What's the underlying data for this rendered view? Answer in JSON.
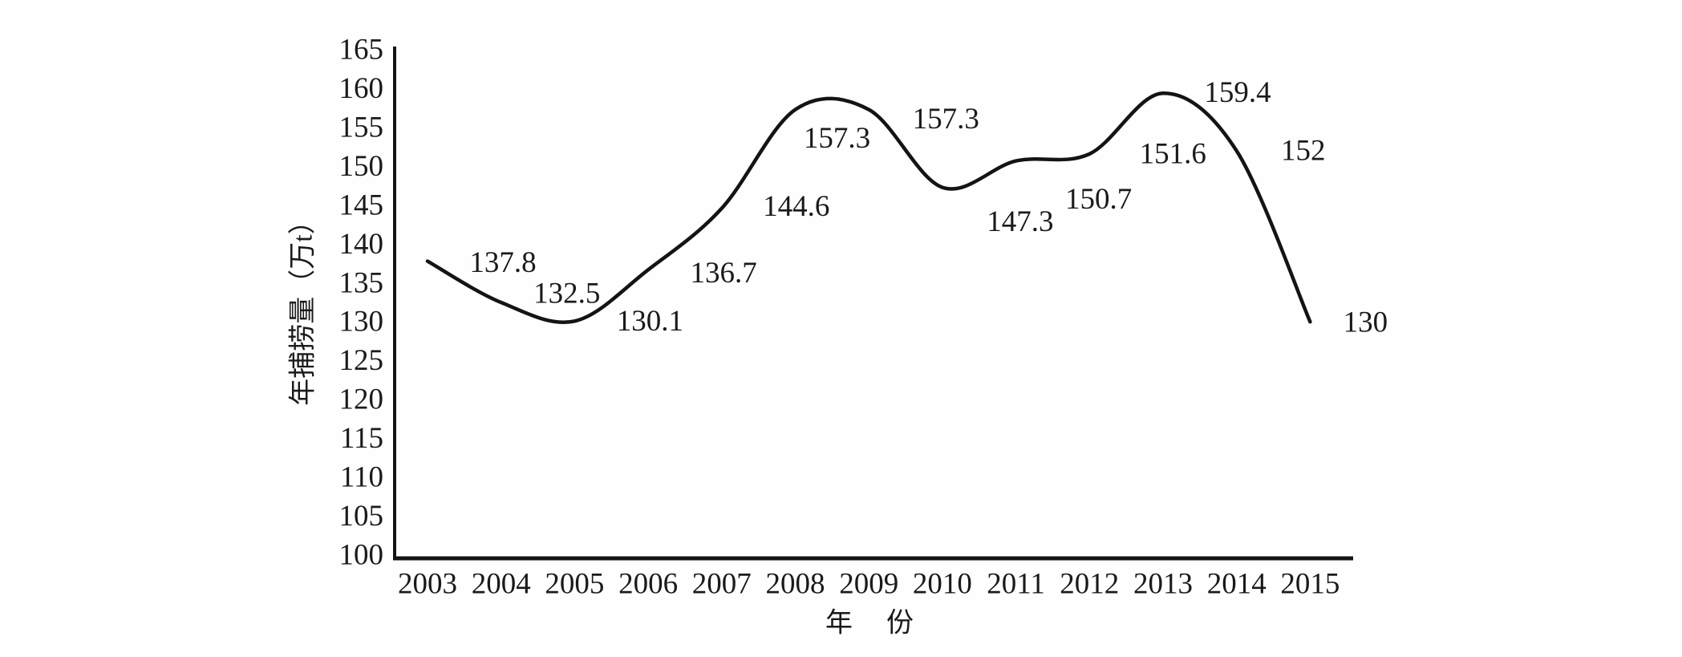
{
  "figure": {
    "background": "#fefefe",
    "line_color": "#141414",
    "text_color": "#1a1a1a"
  },
  "chart_data": {
    "type": "line",
    "title": "",
    "xlabel": "年　份",
    "ylabel": "年捕捞量（万t）",
    "categories": [
      "2003",
      "2004",
      "2005",
      "2006",
      "2007",
      "2008",
      "2009",
      "2010",
      "2011",
      "2012",
      "2013",
      "2014",
      "2015"
    ],
    "series": [
      {
        "name": "年捕捞量",
        "values": [
          137.8,
          132.5,
          130.1,
          136.7,
          144.6,
          157.3,
          157.3,
          147.3,
          150.7,
          151.6,
          159.4,
          152,
          130
        ]
      }
    ],
    "point_labels": [
      "137.8",
      "132.5",
      "130.1",
      "136.7",
      "144.6",
      "157.3",
      "157.3",
      "147.3",
      "150.7",
      "151.6",
      "159.4",
      "152",
      "130"
    ],
    "ylim": [
      100,
      165
    ],
    "ytick_step": 5,
    "yticks": [
      100,
      105,
      110,
      115,
      120,
      125,
      130,
      135,
      140,
      145,
      150,
      155,
      160,
      165
    ],
    "grid": false,
    "legend_position": "none",
    "line_smooth": true
  }
}
